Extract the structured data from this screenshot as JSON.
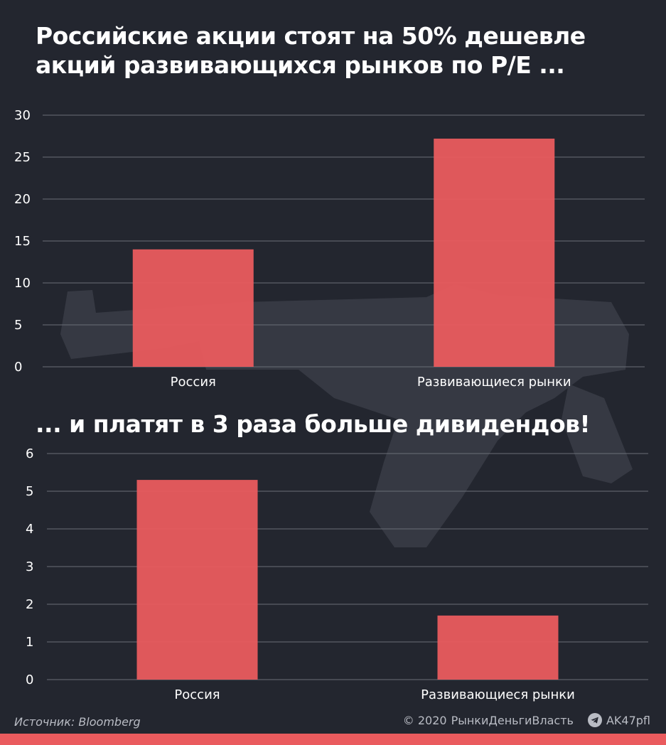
{
  "colors": {
    "background": "#23262f",
    "bar": "#ea5b5e",
    "grid": "#6b6e77",
    "text": "#ffffff",
    "muted": "#b9bcc4"
  },
  "chart_data": [
    {
      "type": "bar",
      "title": "Российские акции стоят на 50% дешевле акций развивающихся рынков по P/E ...",
      "categories": [
        "Россия",
        "Развивающиеся рынки"
      ],
      "values": [
        14.0,
        27.2
      ],
      "ylim": [
        0,
        30
      ],
      "yticks": [
        0,
        5,
        10,
        15,
        20,
        25,
        30
      ],
      "xlabel": "",
      "ylabel": "",
      "grid": true
    },
    {
      "type": "bar",
      "title": "... и платят в 3 раза больше дивидендов!",
      "categories": [
        "Россия",
        "Развивающиеся рынки"
      ],
      "values": [
        5.3,
        1.7
      ],
      "ylim": [
        0,
        6
      ],
      "yticks": [
        0,
        1,
        2,
        3,
        4,
        5,
        6
      ],
      "xlabel": "",
      "ylabel": "",
      "grid": true
    }
  ],
  "footer": {
    "source": "Источник: Bloomberg",
    "copyright": "© 2020",
    "brand": "РынкиДеньгиВласть",
    "telegram_icon": "telegram-icon",
    "handle": "AK47pfl"
  }
}
